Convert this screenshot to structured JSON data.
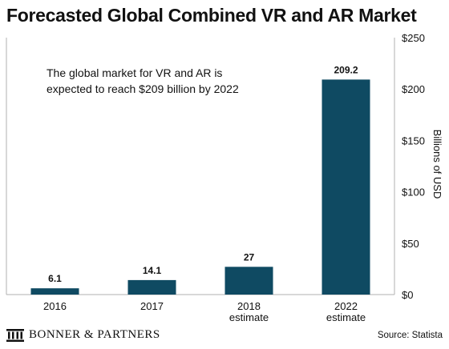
{
  "title": "Forecasted Global Combined VR and AR Market",
  "annotation": [
    "The global market for VR and AR is",
    "expected to reach $209 billion by 2022"
  ],
  "footer": {
    "brand": "BONNER & PARTNERS",
    "source": "Source: Statista"
  },
  "colors": {
    "bar": "#0f4a62",
    "text": "#111111",
    "axis": "#b0b0b0"
  },
  "chart_data": {
    "type": "bar",
    "title": "Forecasted Global Combined VR and AR Market",
    "categories": [
      [
        "2016"
      ],
      [
        "2017"
      ],
      [
        "2018",
        "estimate"
      ],
      [
        "2022",
        "estimate"
      ]
    ],
    "values": [
      6.1,
      14.1,
      27,
      209.2
    ],
    "data_labels": [
      "6.1",
      "14.1",
      "27",
      "209.2"
    ],
    "ylabel": "Billions of USD",
    "ylim": [
      0,
      250
    ],
    "yticks": [
      0,
      50,
      100,
      150,
      200,
      250
    ],
    "ytick_labels": [
      "$0",
      "$50",
      "$100",
      "$150",
      "$200",
      "$250"
    ],
    "y_axis_side": "right",
    "grid": false
  }
}
